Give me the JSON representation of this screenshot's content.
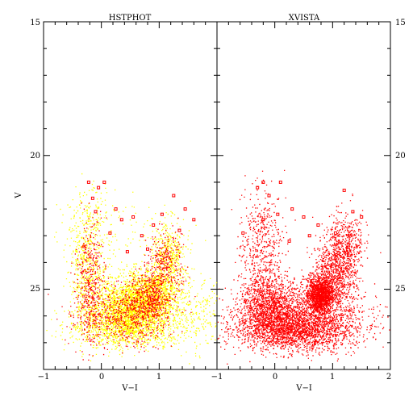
{
  "chart_data": [
    {
      "type": "scatter",
      "title": "HSTPHOT",
      "xlabel": "V−I",
      "ylabel": "V",
      "xlim": [
        -1,
        2
      ],
      "ylim": [
        28,
        15
      ],
      "x_ticks": [
        "−1",
        "0",
        "1"
      ],
      "y_ticks": [
        "15",
        "20",
        "25"
      ],
      "series": [
        {
          "color": "#ffff00",
          "marker": "dot",
          "clumps": [
            {
              "cx": 0.5,
              "cy": 25.7,
              "sx": 0.35,
              "sy": 0.55,
              "n": 2200
            },
            {
              "cx": 0.85,
              "cy": 25.1,
              "sx": 0.22,
              "sy": 0.45,
              "n": 800
            },
            {
              "cx": 1.15,
              "cy": 23.8,
              "sx": 0.15,
              "sy": 0.7,
              "n": 500
            },
            {
              "cx": -0.25,
              "cy": 24.2,
              "sx": 0.15,
              "sy": 1.3,
              "n": 550
            },
            {
              "cx": 0.4,
              "cy": 26.5,
              "sx": 0.5,
              "sy": 0.35,
              "n": 700
            },
            {
              "cx": 1.6,
              "cy": 25.8,
              "sx": 0.3,
              "sy": 0.7,
              "n": 250
            },
            {
              "cx": 0.0,
              "cy": 22.8,
              "sx": 0.4,
              "sy": 0.8,
              "n": 160
            }
          ]
        },
        {
          "color": "#ff0000",
          "marker": "dot",
          "clumps": [
            {
              "cx": 0.8,
              "cy": 25.3,
              "sx": 0.18,
              "sy": 0.45,
              "n": 450
            },
            {
              "cx": 1.1,
              "cy": 24.0,
              "sx": 0.15,
              "sy": 0.6,
              "n": 300
            },
            {
              "cx": -0.2,
              "cy": 24.8,
              "sx": 0.12,
              "sy": 1.1,
              "n": 400
            },
            {
              "cx": 0.4,
              "cy": 26.0,
              "sx": 0.4,
              "sy": 0.55,
              "n": 600
            }
          ],
          "open_markers": [
            [
              -0.22,
              21.0
            ],
            [
              -0.05,
              21.2
            ],
            [
              0.05,
              21.0
            ],
            [
              -0.15,
              21.6
            ],
            [
              0.25,
              22.0
            ],
            [
              0.35,
              22.4
            ],
            [
              0.55,
              22.3
            ],
            [
              -0.1,
              22.1
            ],
            [
              1.25,
              21.5
            ],
            [
              1.05,
              22.2
            ],
            [
              0.9,
              22.6
            ],
            [
              1.45,
              22.0
            ],
            [
              0.15,
              22.9
            ],
            [
              0.7,
              23.0
            ],
            [
              -0.3,
              23.4
            ],
            [
              0.45,
              23.6
            ],
            [
              1.6,
              22.4
            ],
            [
              0.8,
              23.5
            ],
            [
              1.35,
              22.8
            ]
          ]
        }
      ]
    },
    {
      "type": "scatter",
      "title": "XVISTA",
      "xlabel": "V−I",
      "ylabel": "",
      "xlim": [
        -1,
        2
      ],
      "ylim": [
        28,
        15
      ],
      "x_ticks": [
        "−1",
        "0",
        "1",
        "2"
      ],
      "y_ticks": [
        "15",
        "20",
        "25"
      ],
      "series": [
        {
          "color": "#ff0000",
          "marker": "dot",
          "clumps": [
            {
              "cx": 0.78,
              "cy": 25.2,
              "sx": 0.12,
              "sy": 0.35,
              "n": 1500
            },
            {
              "cx": 1.05,
              "cy": 24.3,
              "sx": 0.18,
              "sy": 0.75,
              "n": 900
            },
            {
              "cx": -0.05,
              "cy": 25.6,
              "sx": 0.28,
              "sy": 0.55,
              "n": 1200
            },
            {
              "cx": 0.35,
              "cy": 26.5,
              "sx": 0.5,
              "sy": 0.4,
              "n": 1900
            },
            {
              "cx": -0.25,
              "cy": 23.6,
              "sx": 0.18,
              "sy": 1.2,
              "n": 550
            },
            {
              "cx": 1.25,
              "cy": 23.3,
              "sx": 0.14,
              "sy": 0.6,
              "n": 350
            },
            {
              "cx": 0.5,
              "cy": 26.0,
              "sx": 0.7,
              "sy": 0.6,
              "n": 900
            }
          ],
          "open_markers": [
            [
              -0.2,
              21.0
            ],
            [
              -0.3,
              21.2
            ],
            [
              0.1,
              21.0
            ],
            [
              -0.1,
              21.5
            ],
            [
              0.3,
              22.0
            ],
            [
              0.5,
              22.3
            ],
            [
              1.2,
              21.3
            ],
            [
              1.35,
              22.1
            ],
            [
              1.5,
              22.3
            ],
            [
              0.75,
              22.6
            ],
            [
              0.05,
              22.2
            ],
            [
              -0.2,
              22.4
            ],
            [
              0.6,
              23.0
            ],
            [
              1.05,
              22.9
            ],
            [
              -0.55,
              22.9
            ],
            [
              0.25,
              23.2
            ]
          ]
        }
      ]
    }
  ]
}
